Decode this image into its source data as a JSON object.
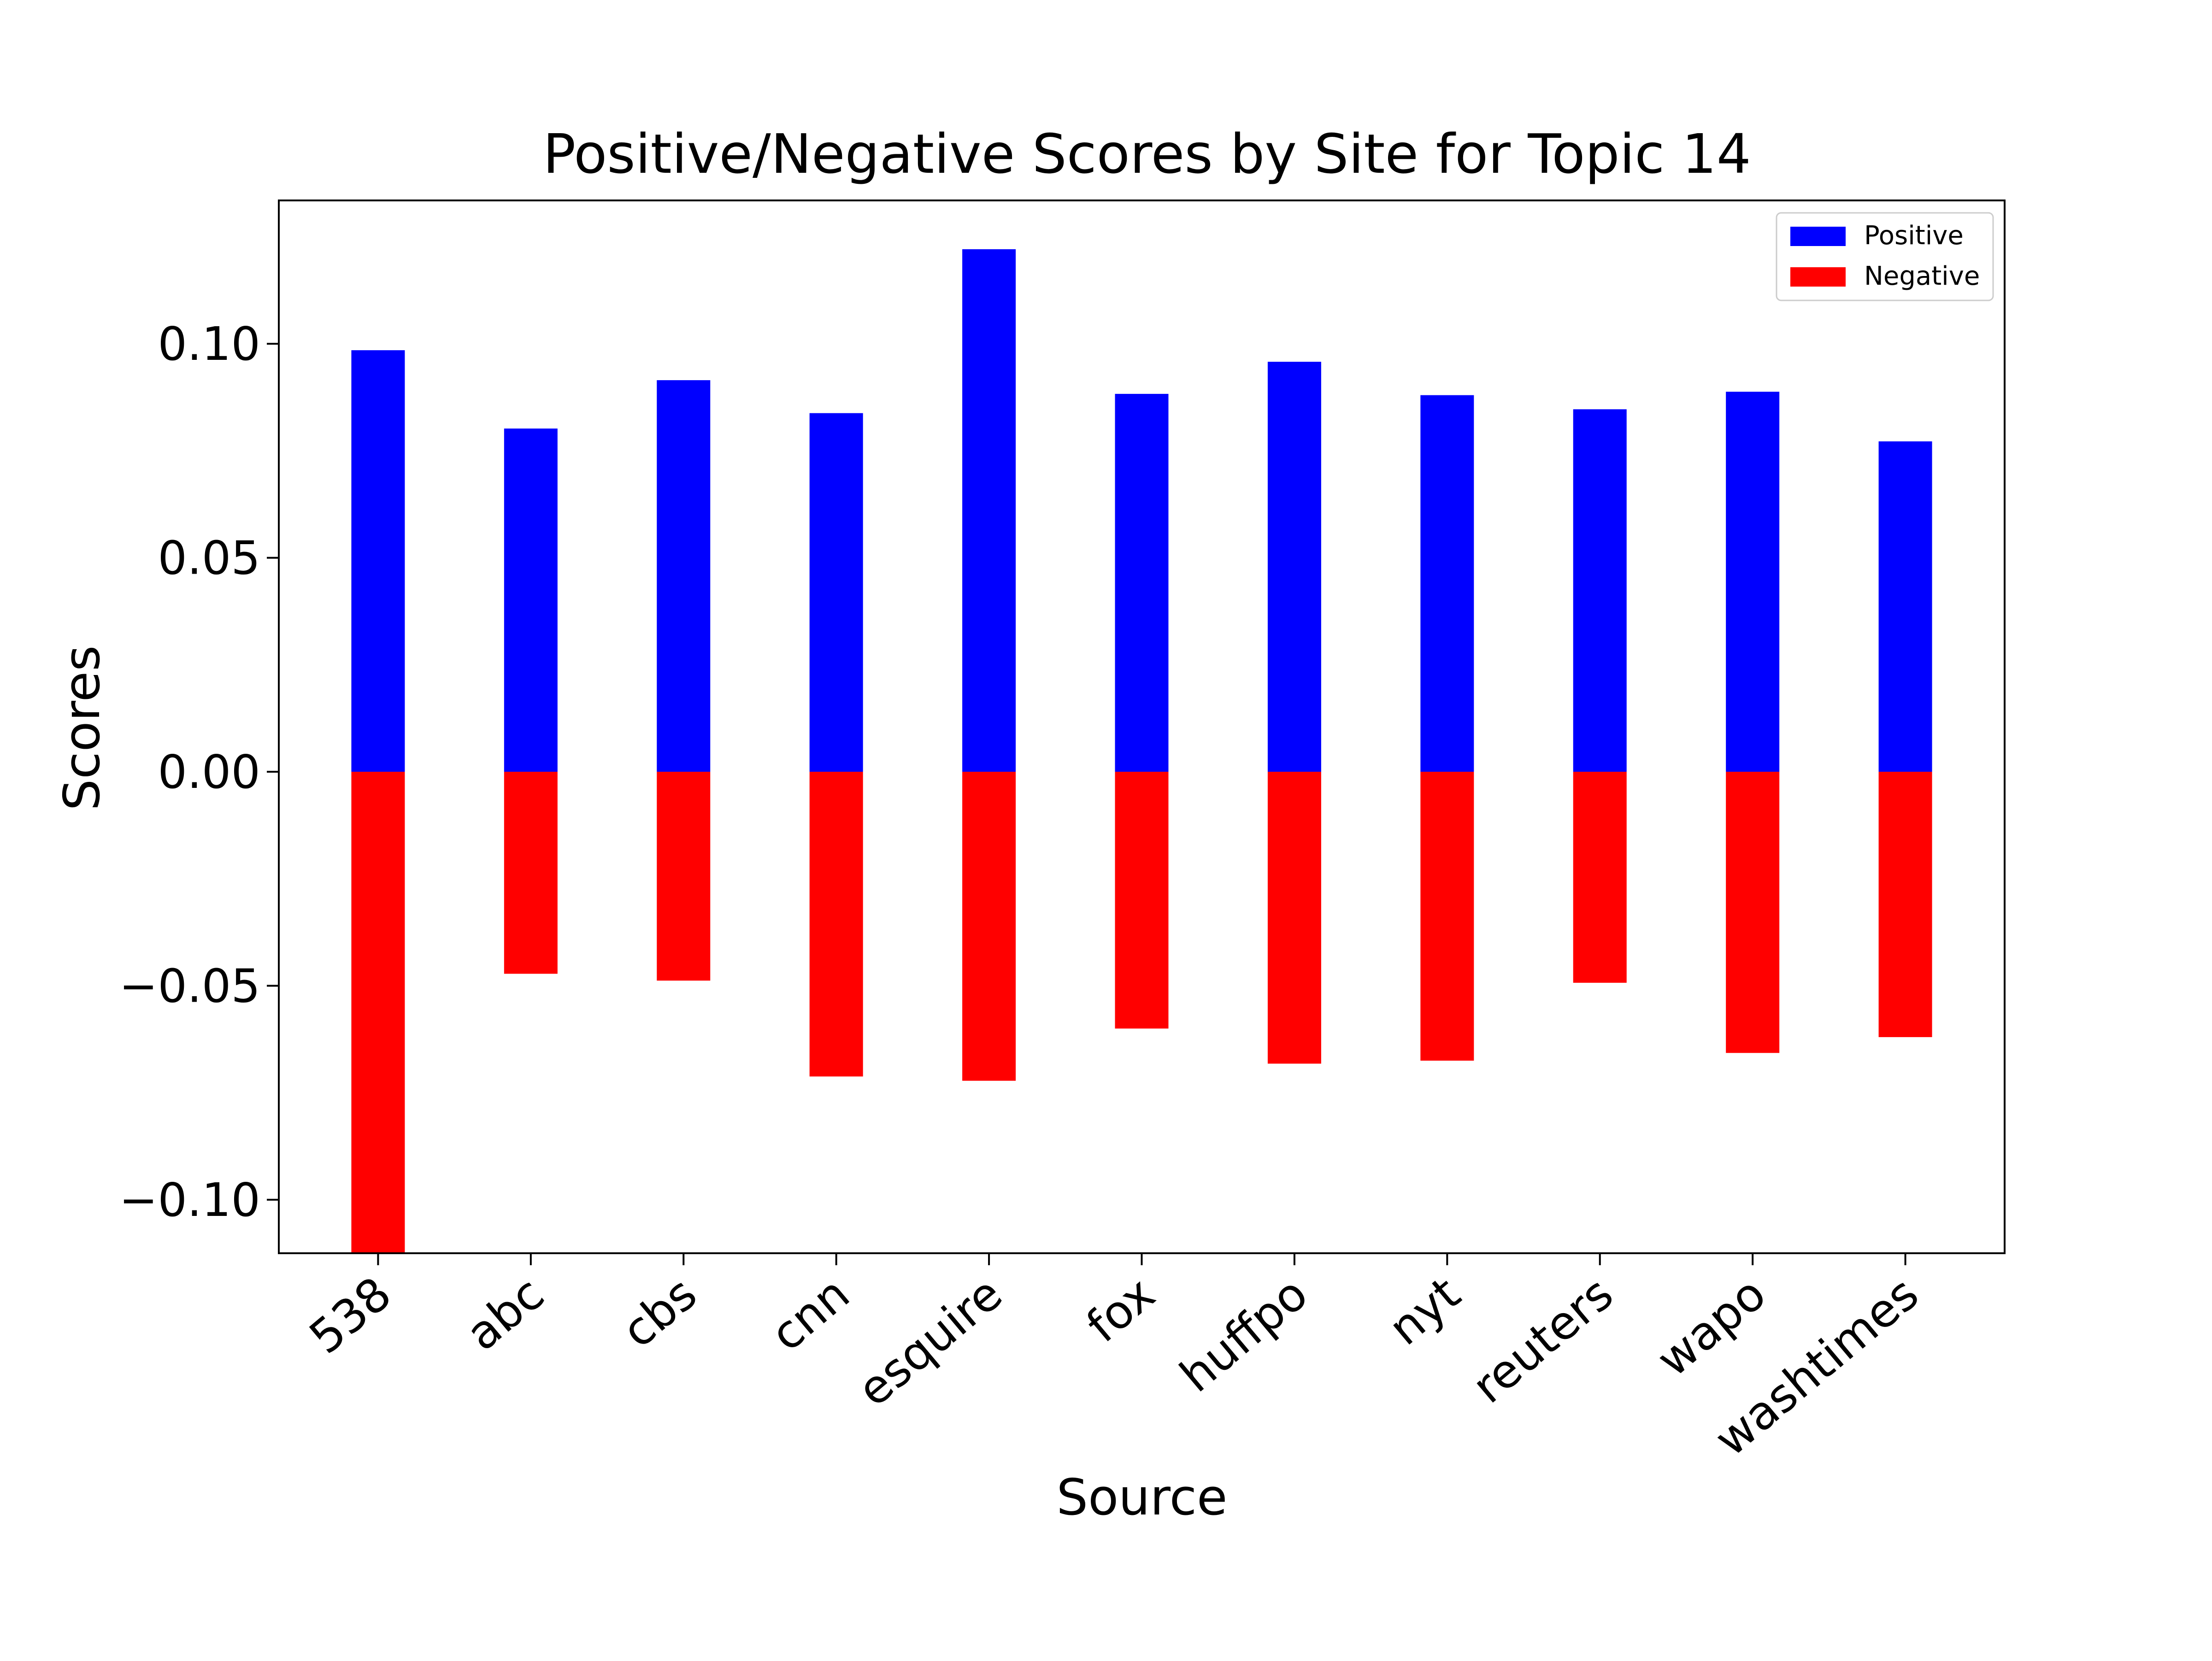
{
  "chart_data": {
    "type": "bar",
    "title": "Positive/Negative Scores by Site for Topic 14",
    "xlabel": "Source",
    "ylabel": "Scores",
    "categories": [
      "538",
      "abc",
      "cbs",
      "cnn",
      "esquire",
      "fox",
      "huffpo",
      "nyt",
      "reuters",
      "wapo",
      "washtimes"
    ],
    "series": [
      {
        "name": "Positive",
        "color": "#0000ff",
        "values": [
          0.0985,
          0.0802,
          0.0915,
          0.0838,
          0.1221,
          0.0883,
          0.0958,
          0.088,
          0.0847,
          0.0888,
          0.0772
        ]
      },
      {
        "name": "Negative",
        "color": "#ff0000",
        "values": [
          -0.115,
          -0.0472,
          -0.0488,
          -0.0712,
          -0.0722,
          -0.06,
          -0.0682,
          -0.0675,
          -0.0493,
          -0.0657,
          -0.062
        ]
      }
    ],
    "ylim": [
      -0.1125,
      0.1335
    ],
    "yticks": [
      -0.1,
      -0.05,
      0.0,
      0.05,
      0.1
    ],
    "ytick_labels": [
      "−0.10",
      "−0.05",
      "0.00",
      "0.05",
      "0.10"
    ],
    "grid": false,
    "legend_position": "top-right"
  }
}
